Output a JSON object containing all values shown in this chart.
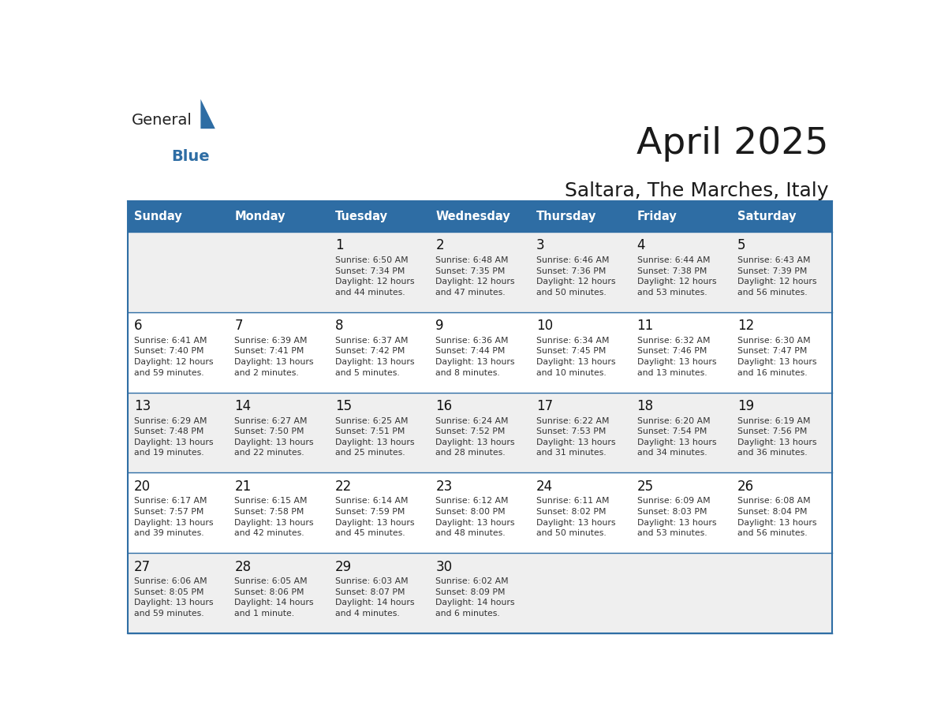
{
  "title": "April 2025",
  "subtitle": "Saltara, The Marches, Italy",
  "header_bg": "#2E6DA4",
  "header_text_color": "#FFFFFF",
  "cell_bg_even": "#F0F0F0",
  "cell_bg_odd": "#FFFFFF",
  "day_number_color": "#111111",
  "cell_text_color": "#333333",
  "grid_line_color": "#2E6DA4",
  "days_of_week": [
    "Sunday",
    "Monday",
    "Tuesday",
    "Wednesday",
    "Thursday",
    "Friday",
    "Saturday"
  ],
  "weeks": [
    [
      {
        "day": "",
        "text": ""
      },
      {
        "day": "",
        "text": ""
      },
      {
        "day": "1",
        "text": "Sunrise: 6:50 AM\nSunset: 7:34 PM\nDaylight: 12 hours\nand 44 minutes."
      },
      {
        "day": "2",
        "text": "Sunrise: 6:48 AM\nSunset: 7:35 PM\nDaylight: 12 hours\nand 47 minutes."
      },
      {
        "day": "3",
        "text": "Sunrise: 6:46 AM\nSunset: 7:36 PM\nDaylight: 12 hours\nand 50 minutes."
      },
      {
        "day": "4",
        "text": "Sunrise: 6:44 AM\nSunset: 7:38 PM\nDaylight: 12 hours\nand 53 minutes."
      },
      {
        "day": "5",
        "text": "Sunrise: 6:43 AM\nSunset: 7:39 PM\nDaylight: 12 hours\nand 56 minutes."
      }
    ],
    [
      {
        "day": "6",
        "text": "Sunrise: 6:41 AM\nSunset: 7:40 PM\nDaylight: 12 hours\nand 59 minutes."
      },
      {
        "day": "7",
        "text": "Sunrise: 6:39 AM\nSunset: 7:41 PM\nDaylight: 13 hours\nand 2 minutes."
      },
      {
        "day": "8",
        "text": "Sunrise: 6:37 AM\nSunset: 7:42 PM\nDaylight: 13 hours\nand 5 minutes."
      },
      {
        "day": "9",
        "text": "Sunrise: 6:36 AM\nSunset: 7:44 PM\nDaylight: 13 hours\nand 8 minutes."
      },
      {
        "day": "10",
        "text": "Sunrise: 6:34 AM\nSunset: 7:45 PM\nDaylight: 13 hours\nand 10 minutes."
      },
      {
        "day": "11",
        "text": "Sunrise: 6:32 AM\nSunset: 7:46 PM\nDaylight: 13 hours\nand 13 minutes."
      },
      {
        "day": "12",
        "text": "Sunrise: 6:30 AM\nSunset: 7:47 PM\nDaylight: 13 hours\nand 16 minutes."
      }
    ],
    [
      {
        "day": "13",
        "text": "Sunrise: 6:29 AM\nSunset: 7:48 PM\nDaylight: 13 hours\nand 19 minutes."
      },
      {
        "day": "14",
        "text": "Sunrise: 6:27 AM\nSunset: 7:50 PM\nDaylight: 13 hours\nand 22 minutes."
      },
      {
        "day": "15",
        "text": "Sunrise: 6:25 AM\nSunset: 7:51 PM\nDaylight: 13 hours\nand 25 minutes."
      },
      {
        "day": "16",
        "text": "Sunrise: 6:24 AM\nSunset: 7:52 PM\nDaylight: 13 hours\nand 28 minutes."
      },
      {
        "day": "17",
        "text": "Sunrise: 6:22 AM\nSunset: 7:53 PM\nDaylight: 13 hours\nand 31 minutes."
      },
      {
        "day": "18",
        "text": "Sunrise: 6:20 AM\nSunset: 7:54 PM\nDaylight: 13 hours\nand 34 minutes."
      },
      {
        "day": "19",
        "text": "Sunrise: 6:19 AM\nSunset: 7:56 PM\nDaylight: 13 hours\nand 36 minutes."
      }
    ],
    [
      {
        "day": "20",
        "text": "Sunrise: 6:17 AM\nSunset: 7:57 PM\nDaylight: 13 hours\nand 39 minutes."
      },
      {
        "day": "21",
        "text": "Sunrise: 6:15 AM\nSunset: 7:58 PM\nDaylight: 13 hours\nand 42 minutes."
      },
      {
        "day": "22",
        "text": "Sunrise: 6:14 AM\nSunset: 7:59 PM\nDaylight: 13 hours\nand 45 minutes."
      },
      {
        "day": "23",
        "text": "Sunrise: 6:12 AM\nSunset: 8:00 PM\nDaylight: 13 hours\nand 48 minutes."
      },
      {
        "day": "24",
        "text": "Sunrise: 6:11 AM\nSunset: 8:02 PM\nDaylight: 13 hours\nand 50 minutes."
      },
      {
        "day": "25",
        "text": "Sunrise: 6:09 AM\nSunset: 8:03 PM\nDaylight: 13 hours\nand 53 minutes."
      },
      {
        "day": "26",
        "text": "Sunrise: 6:08 AM\nSunset: 8:04 PM\nDaylight: 13 hours\nand 56 minutes."
      }
    ],
    [
      {
        "day": "27",
        "text": "Sunrise: 6:06 AM\nSunset: 8:05 PM\nDaylight: 13 hours\nand 59 minutes."
      },
      {
        "day": "28",
        "text": "Sunrise: 6:05 AM\nSunset: 8:06 PM\nDaylight: 14 hours\nand 1 minute."
      },
      {
        "day": "29",
        "text": "Sunrise: 6:03 AM\nSunset: 8:07 PM\nDaylight: 14 hours\nand 4 minutes."
      },
      {
        "day": "30",
        "text": "Sunrise: 6:02 AM\nSunset: 8:09 PM\nDaylight: 14 hours\nand 6 minutes."
      },
      {
        "day": "",
        "text": ""
      },
      {
        "day": "",
        "text": ""
      },
      {
        "day": "",
        "text": ""
      }
    ]
  ]
}
